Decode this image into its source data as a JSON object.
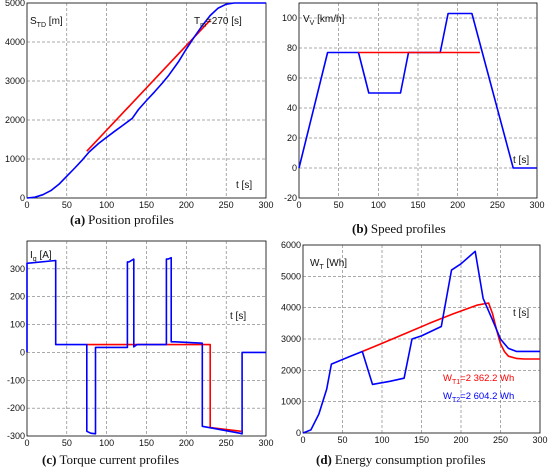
{
  "chart_data": [
    {
      "type": "line",
      "caption_letter": "(a)",
      "caption_text": "Position profiles",
      "ylabel": "S_TD [m]",
      "xlabel": "t [s]",
      "annotation": "T_m=270 [s]",
      "xlim": [
        0,
        300
      ],
      "ylim": [
        0,
        5000
      ],
      "xticks": [
        0,
        50,
        100,
        150,
        200,
        250,
        300
      ],
      "yticks": [
        0,
        1000,
        2000,
        3000,
        4000,
        5000
      ],
      "grid": true,
      "series": [
        {
          "color": "#ff0000",
          "x": [
            75,
            230
          ],
          "y": [
            1200,
            4560
          ]
        },
        {
          "color": "#0000ff",
          "x": [
            0,
            10,
            20,
            30,
            40,
            50,
            60,
            70,
            78,
            90,
            100,
            110,
            120,
            132,
            140,
            150,
            160,
            170,
            178,
            190,
            200,
            210,
            220,
            230,
            240,
            250,
            260,
            270,
            300
          ],
          "y": [
            0,
            20,
            85,
            190,
            350,
            560,
            770,
            990,
            1180,
            1400,
            1560,
            1710,
            1860,
            2040,
            2270,
            2500,
            2720,
            2950,
            3150,
            3490,
            3820,
            4130,
            4420,
            4680,
            4870,
            4970,
            5000,
            5000,
            5000
          ]
        }
      ]
    },
    {
      "type": "line",
      "caption_letter": "(b)",
      "caption_text": "Speed profiles",
      "ylabel": "V_V [km/h]",
      "xlabel": "t [s]",
      "xlim": [
        0,
        300
      ],
      "ylim": [
        -20,
        110
      ],
      "xticks": [
        0,
        50,
        100,
        150,
        200,
        250,
        300
      ],
      "yticks": [
        -20,
        0,
        20,
        40,
        60,
        80,
        100
      ],
      "grid": true,
      "series": [
        {
          "color": "#0000ff",
          "x": [
            0,
            36,
            75,
            88,
            128,
            138,
            178,
            188,
            218,
            270,
            300
          ],
          "y": [
            0,
            77,
            77,
            50,
            50,
            77,
            77,
            103,
            103,
            0,
            0
          ]
        },
        {
          "color": "#ff0000",
          "x": [
            75,
            178,
            228
          ],
          "y": [
            77,
            77,
            77
          ]
        }
      ]
    },
    {
      "type": "line",
      "caption_letter": "(c)",
      "caption_text": "Torque current profiles",
      "ylabel": "I_q [A]",
      "xlabel": "t [s]",
      "xlim": [
        0,
        300
      ],
      "ylim": [
        -300,
        400
      ],
      "xticks": [
        0,
        50,
        100,
        150,
        200,
        250,
        300
      ],
      "yticks": [
        -300,
        -200,
        -100,
        0,
        100,
        200,
        300
      ],
      "grid": true,
      "series": [
        {
          "color": "#ff0000",
          "x": [
            75,
            230,
            230,
            269
          ],
          "y": [
            28,
            28,
            -270,
            -283
          ]
        },
        {
          "color": "#0000ff",
          "x": [
            0,
            0,
            36,
            36,
            75,
            75,
            80,
            86,
            86,
            126,
            126,
            128,
            134,
            134,
            138,
            175,
            175,
            177,
            181,
            181,
            186,
            220,
            220,
            267,
            270,
            270,
            300
          ],
          "y": [
            0,
            320,
            330,
            28,
            28,
            -283,
            -290,
            -292,
            18,
            18,
            325,
            325,
            335,
            20,
            28,
            28,
            335,
            335,
            340,
            38,
            38,
            33,
            -265,
            -290,
            -292,
            0,
            0
          ]
        }
      ]
    },
    {
      "type": "line",
      "caption_letter": "(d)",
      "caption_text": "Energy consumption profiles",
      "ylabel": "W_T [Wh]",
      "xlabel": "t [s]",
      "xlim": [
        0,
        300
      ],
      "ylim": [
        0,
        6000
      ],
      "xticks": [
        0,
        50,
        100,
        150,
        200,
        250,
        300
      ],
      "yticks": [
        0,
        1000,
        2000,
        3000,
        4000,
        5000,
        6000
      ],
      "grid": true,
      "legend": [
        {
          "label": "W_T1=2 362.2 Wh",
          "color": "#ff0000"
        },
        {
          "label": "W_T2=2 604.2 Wh",
          "color": "#0000ff"
        }
      ],
      "series": [
        {
          "color": "#ff0000",
          "x": [
            75,
            100,
            130,
            160,
            190,
            220,
            235,
            240,
            245,
            250,
            255,
            260,
            270,
            280,
            300
          ],
          "y": [
            2600,
            2860,
            3180,
            3500,
            3800,
            4080,
            4150,
            3800,
            3300,
            2850,
            2600,
            2450,
            2380,
            2362,
            2362
          ]
        },
        {
          "color": "#0000ff",
          "x": [
            0,
            10,
            20,
            30,
            36,
            60,
            75,
            88,
            110,
            128,
            138,
            150,
            175,
            188,
            200,
            218,
            228,
            240,
            250,
            255,
            260,
            270,
            280,
            300
          ],
          "y": [
            0,
            100,
            600,
            1400,
            2200,
            2450,
            2600,
            1550,
            1650,
            1750,
            3000,
            3100,
            3400,
            5200,
            5400,
            5800,
            4300,
            3600,
            3000,
            2850,
            2700,
            2604,
            2604,
            2604
          ]
        }
      ]
    }
  ]
}
